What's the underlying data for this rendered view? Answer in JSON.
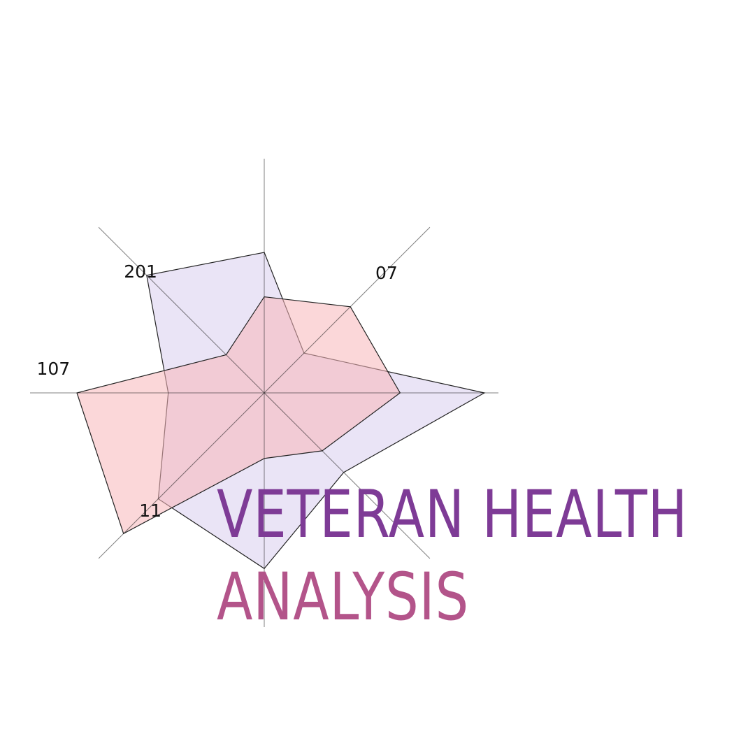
{
  "chart_data": {
    "type": "radar",
    "title_lines": [
      "VETERAN HEALTH",
      "ANALYSIS"
    ],
    "axes": [
      "",
      "07",
      "",
      "",
      "",
      "11",
      "107",
      "201"
    ],
    "rmax": 100,
    "series": [
      {
        "values": [
          60,
          24,
          94,
          48,
          75,
          64,
          41,
          71
        ],
        "color": "#d9cdee"
      },
      {
        "values": [
          41,
          52,
          58,
          35,
          28,
          85,
          80,
          23
        ],
        "color": "#f7b7b9"
      }
    ],
    "colors": {
      "title_start": "#7e3b96",
      "title_end": "#b3548a",
      "axis": "#1a1a1a"
    }
  }
}
